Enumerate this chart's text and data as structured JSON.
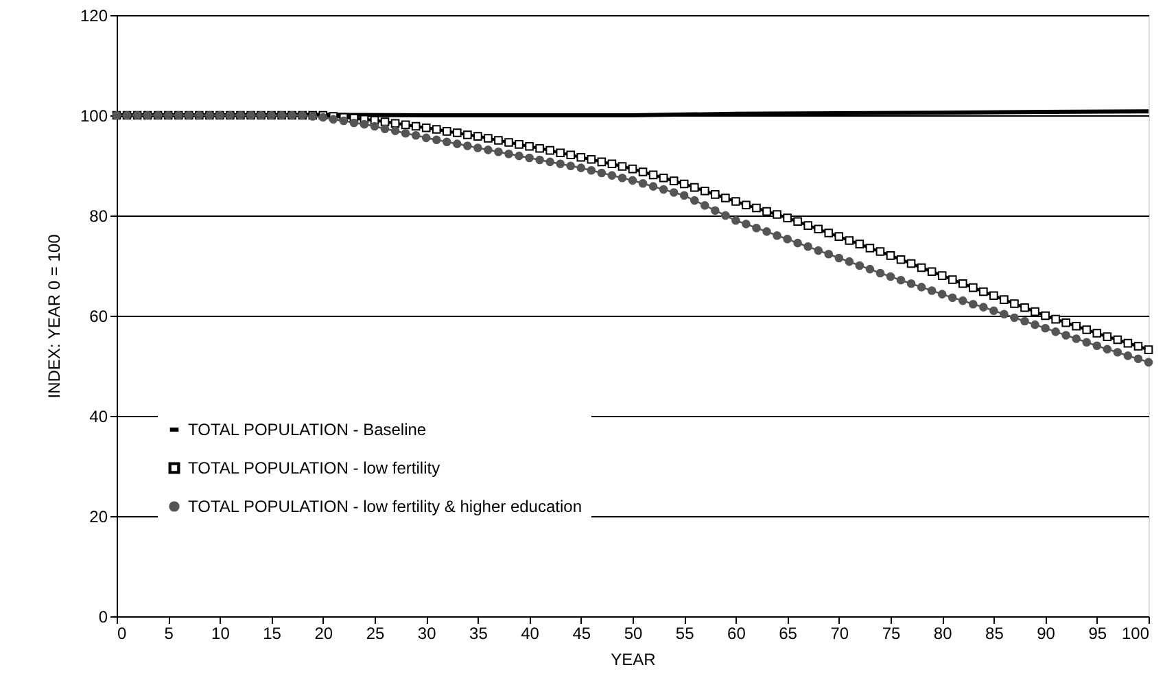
{
  "chart_data": {
    "type": "line",
    "xlabel": "YEAR",
    "ylabel": "INDEX: YEAR 0 = 100",
    "xlim": [
      0,
      100
    ],
    "xticks": [
      0,
      5,
      10,
      15,
      20,
      25,
      30,
      35,
      40,
      45,
      50,
      55,
      60,
      65,
      70,
      75,
      80,
      85,
      90,
      95,
      100
    ],
    "ylim": [
      0,
      120
    ],
    "yticks": [
      0,
      20,
      40,
      60,
      80,
      100,
      120
    ],
    "grid": "y",
    "legend": "bottom left",
    "series": [
      {
        "name": "TOTAL POPULATION - Baseline",
        "color": "#000000",
        "marker": "none",
        "x": [
          0,
          10,
          20,
          30,
          40,
          50,
          60,
          70,
          80,
          90,
          100
        ],
        "values": [
          100,
          100,
          100.1,
          100,
          100,
          100,
          100.3,
          100.4,
          100.5,
          100.7,
          100.8
        ]
      },
      {
        "name": "TOTAL POPULATION - low fertility",
        "color": "#000000",
        "marker": "square",
        "x": [
          0,
          1,
          2,
          3,
          4,
          5,
          6,
          7,
          8,
          9,
          10,
          11,
          12,
          13,
          14,
          15,
          16,
          17,
          18,
          19,
          20,
          21,
          22,
          23,
          24,
          25,
          26,
          27,
          28,
          29,
          30,
          31,
          32,
          33,
          34,
          35,
          36,
          37,
          38,
          39,
          40,
          41,
          42,
          43,
          44,
          45,
          46,
          47,
          48,
          49,
          50,
          51,
          52,
          53,
          54,
          55,
          56,
          57,
          58,
          59,
          60,
          61,
          62,
          63,
          64,
          65,
          66,
          67,
          68,
          69,
          70,
          71,
          72,
          73,
          74,
          75,
          76,
          77,
          78,
          79,
          80,
          81,
          82,
          83,
          84,
          85,
          86,
          87,
          88,
          89,
          90,
          91,
          92,
          93,
          94,
          95,
          96,
          97,
          98,
          99,
          100
        ],
        "values": [
          100,
          100,
          100,
          100,
          100,
          100,
          100,
          100,
          100,
          100,
          100,
          100,
          100,
          100,
          100,
          100,
          100,
          100,
          100,
          100,
          100,
          99.8,
          99.6,
          99.4,
          99.2,
          99.0,
          98.7,
          98.4,
          98.1,
          97.8,
          97.5,
          97.2,
          96.8,
          96.5,
          96.1,
          95.8,
          95.4,
          95.0,
          94.6,
          94.2,
          93.8,
          93.4,
          93.0,
          92.5,
          92.1,
          91.6,
          91.2,
          90.7,
          90.3,
          89.8,
          89.3,
          88.7,
          88.1,
          87.5,
          86.9,
          86.3,
          85.6,
          84.9,
          84.2,
          83.5,
          82.8,
          82.1,
          81.5,
          80.8,
          80.2,
          79.5,
          78.8,
          78.0,
          77.3,
          76.5,
          75.8,
          75.0,
          74.3,
          73.5,
          72.8,
          72.0,
          71.2,
          70.4,
          69.6,
          68.8,
          68.0,
          67.2,
          66.4,
          65.6,
          64.8,
          64.0,
          63.2,
          62.4,
          61.6,
          60.8,
          60.0,
          59.3,
          58.6,
          57.9,
          57.2,
          56.5,
          55.8,
          55.2,
          54.5,
          53.9,
          53.2
        ]
      },
      {
        "name": "TOTAL POPULATION - low fertility & higher education",
        "color": "#555555",
        "marker": "circle",
        "x": [
          0,
          1,
          2,
          3,
          4,
          5,
          6,
          7,
          8,
          9,
          10,
          11,
          12,
          13,
          14,
          15,
          16,
          17,
          18,
          19,
          20,
          21,
          22,
          23,
          24,
          25,
          26,
          27,
          28,
          29,
          30,
          31,
          32,
          33,
          34,
          35,
          36,
          37,
          38,
          39,
          40,
          41,
          42,
          43,
          44,
          45,
          46,
          47,
          48,
          49,
          50,
          51,
          52,
          53,
          54,
          55,
          56,
          57,
          58,
          59,
          60,
          61,
          62,
          63,
          64,
          65,
          66,
          67,
          68,
          69,
          70,
          71,
          72,
          73,
          74,
          75,
          76,
          77,
          78,
          79,
          80,
          81,
          82,
          83,
          84,
          85,
          86,
          87,
          88,
          89,
          90,
          91,
          92,
          93,
          94,
          95,
          96,
          97,
          98,
          99,
          100
        ],
        "values": [
          100,
          100,
          100,
          100,
          100,
          100,
          100,
          100,
          100,
          100,
          100,
          100,
          100,
          100,
          100,
          100,
          100,
          100,
          100,
          99.8,
          99.6,
          99.2,
          98.9,
          98.5,
          98.2,
          97.8,
          97.3,
          96.9,
          96.4,
          96.0,
          95.5,
          95.1,
          94.7,
          94.3,
          93.9,
          93.5,
          93.1,
          92.7,
          92.3,
          91.9,
          91.5,
          91.1,
          90.7,
          90.3,
          89.9,
          89.5,
          89.0,
          88.5,
          88.0,
          87.5,
          87.0,
          86.4,
          85.8,
          85.2,
          84.6,
          84.0,
          83.0,
          82.0,
          81.0,
          80.0,
          79.0,
          78.3,
          77.5,
          76.8,
          76.0,
          75.3,
          74.5,
          73.8,
          73.0,
          72.3,
          71.5,
          70.8,
          70.0,
          69.3,
          68.5,
          67.8,
          67.1,
          66.4,
          65.7,
          65.0,
          64.3,
          63.6,
          63.0,
          62.3,
          61.7,
          61.0,
          60.3,
          59.6,
          58.9,
          58.2,
          57.5,
          56.8,
          56.1,
          55.4,
          54.7,
          54.0,
          53.3,
          52.7,
          52.0,
          51.4,
          50.7
        ]
      }
    ]
  }
}
